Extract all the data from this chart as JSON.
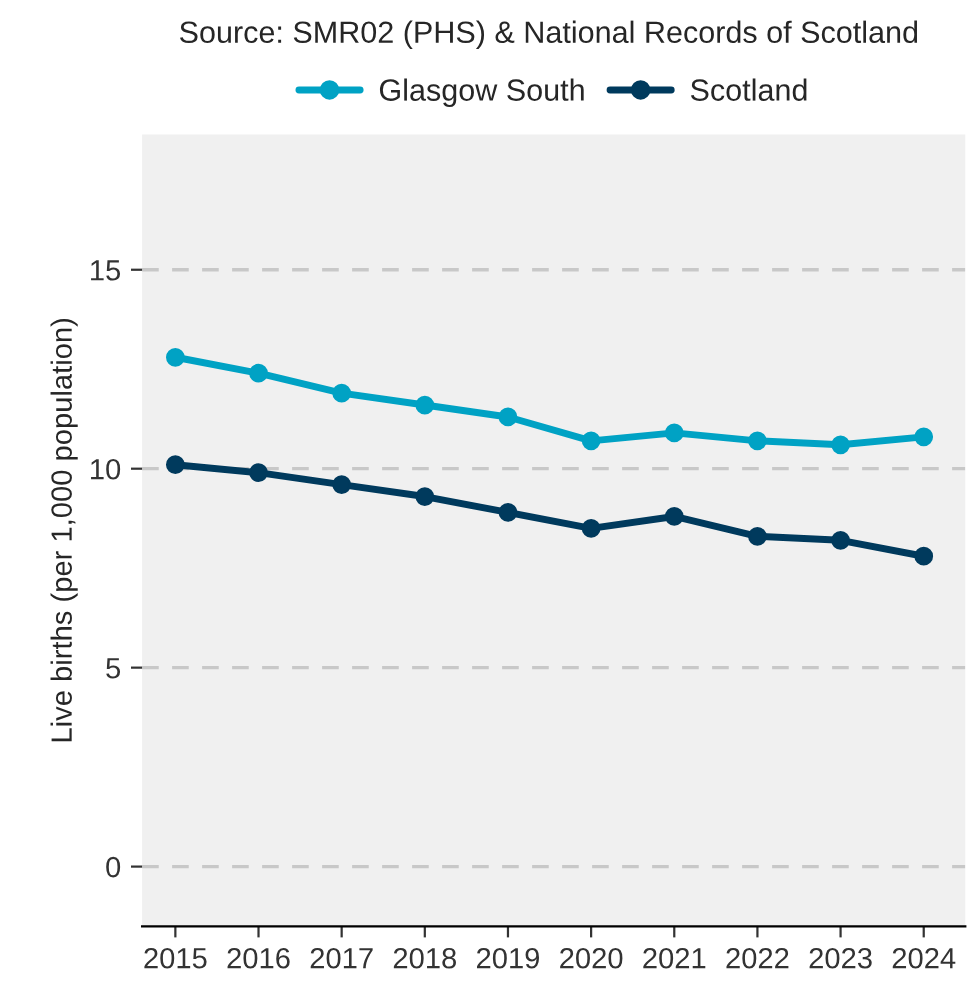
{
  "chart_data": {
    "type": "line",
    "annotations": [
      "Source: SMR02 (PHS) & National Records of Scotland"
    ],
    "ylabel": "Live births (per 1,000 population)",
    "categories": [
      "2015",
      "2016",
      "2017",
      "2018",
      "2019",
      "2020",
      "2021",
      "2022",
      "2023",
      "2024"
    ],
    "series": [
      {
        "name": "Glasgow South",
        "color": "#00a2c4",
        "values": [
          12.8,
          12.4,
          11.9,
          11.6,
          11.3,
          10.7,
          10.9,
          10.7,
          10.6,
          10.8
        ]
      },
      {
        "name": "Scotland",
        "color": "#003a5d",
        "values": [
          10.1,
          9.9,
          9.6,
          9.3,
          8.9,
          8.5,
          8.8,
          8.3,
          8.2,
          7.8
        ]
      }
    ],
    "ylim": [
      -1.5,
      18.4
    ],
    "yticks": [
      0,
      5,
      10,
      15
    ],
    "grid": "y",
    "legend": "top",
    "marker": "circle",
    "line_style": "solid"
  }
}
